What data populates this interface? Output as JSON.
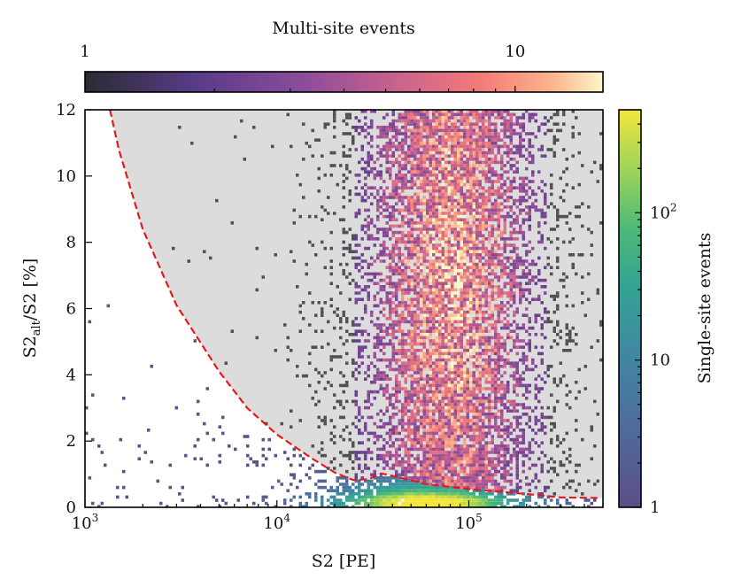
{
  "chart_data": {
    "type": "heatmap",
    "title": "",
    "xlabel": "S2 [PE]",
    "ylabel_main": "S2",
    "ylabel_sub": "alt",
    "ylabel_rest": "/S2 [%]",
    "x_scale": "log",
    "xlim": [
      1000,
      500000
    ],
    "ylim": [
      0,
      12
    ],
    "x_ticks": [
      {
        "value": 1000,
        "base": "10",
        "exp": "3"
      },
      {
        "value": 10000,
        "base": "10",
        "exp": "4"
      },
      {
        "value": 100000,
        "base": "10",
        "exp": "5"
      }
    ],
    "y_ticks": [
      {
        "value": 0,
        "label": "0"
      },
      {
        "value": 2,
        "label": "2"
      },
      {
        "value": 4,
        "label": "4"
      },
      {
        "value": 6,
        "label": "6"
      },
      {
        "value": 8,
        "label": "8"
      },
      {
        "value": 10,
        "label": "10"
      },
      {
        "value": 12,
        "label": "12"
      }
    ],
    "top_colorbar": {
      "label": "Multi-site events",
      "scale": "log",
      "range": [
        1,
        16
      ],
      "colormap": "magma",
      "ticks": [
        {
          "value": 1,
          "label": "1"
        },
        {
          "value": 10,
          "label": "10"
        }
      ]
    },
    "right_colorbar": {
      "label": "Single-site events",
      "scale": "log",
      "range": [
        1,
        500
      ],
      "colormap": "viridis",
      "ticks": [
        {
          "value": 1,
          "label": "1"
        },
        {
          "value": 10,
          "label": "10"
        },
        {
          "value": 100,
          "label": "10",
          "exp": "2"
        }
      ]
    },
    "threshold_curve": {
      "style": "dashed",
      "color": "#e41a1c",
      "points": [
        [
          1350,
          12
        ],
        [
          1500,
          10.8
        ],
        [
          2000,
          8.4
        ],
        [
          3000,
          6.1
        ],
        [
          5000,
          4.1
        ],
        [
          7000,
          3.0
        ],
        [
          10000,
          2.2
        ],
        [
          15000,
          1.5
        ],
        [
          20000,
          1.05
        ],
        [
          25000,
          0.82
        ],
        [
          30000,
          0.85
        ],
        [
          35000,
          1.02
        ],
        [
          40000,
          0.95
        ],
        [
          60000,
          0.7
        ],
        [
          100000,
          0.55
        ],
        [
          200000,
          0.4
        ],
        [
          300000,
          0.3
        ],
        [
          480000,
          0.28
        ]
      ]
    },
    "excluded_region_color": "#dcdcdc",
    "multi_site_cluster": {
      "x_center": 80000,
      "x_range": [
        20000,
        350000
      ],
      "y_range": [
        0,
        12
      ]
    },
    "single_site_cluster": {
      "x_center": 60000,
      "y_center": 0.25,
      "y_range": [
        0,
        1.2
      ]
    }
  }
}
